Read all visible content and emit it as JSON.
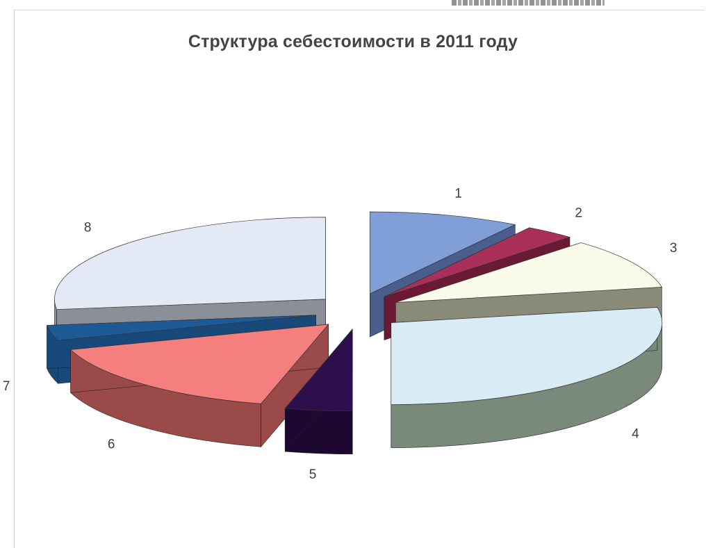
{
  "page": {
    "header_fragment": ""
  },
  "chart_data": {
    "type": "pie",
    "style": "3d-exploded",
    "title": "Структура себестоимости в 2011 году",
    "categories": [
      "1",
      "2",
      "3",
      "4",
      "5",
      "6",
      "7",
      "8"
    ],
    "values": [
      9,
      3,
      10,
      28,
      4,
      16,
      3,
      27
    ],
    "colors": [
      "#7f9fd6",
      "#a8305a",
      "#fbfbea",
      "#d9ebf4",
      "#2e0f4e",
      "#f57f7f",
      "#1d5a96",
      "#e4e9f6"
    ],
    "side_colors": [
      "#4a5e8c",
      "#6a1a34",
      "#8a8a78",
      "#7a8a7a",
      "#1c0830",
      "#9a4a48",
      "#174a7a",
      "#8a8f98"
    ],
    "legend": "none",
    "data_labels": [
      "1",
      "2",
      "3",
      "4",
      "5",
      "6",
      "7",
      "8"
    ]
  }
}
